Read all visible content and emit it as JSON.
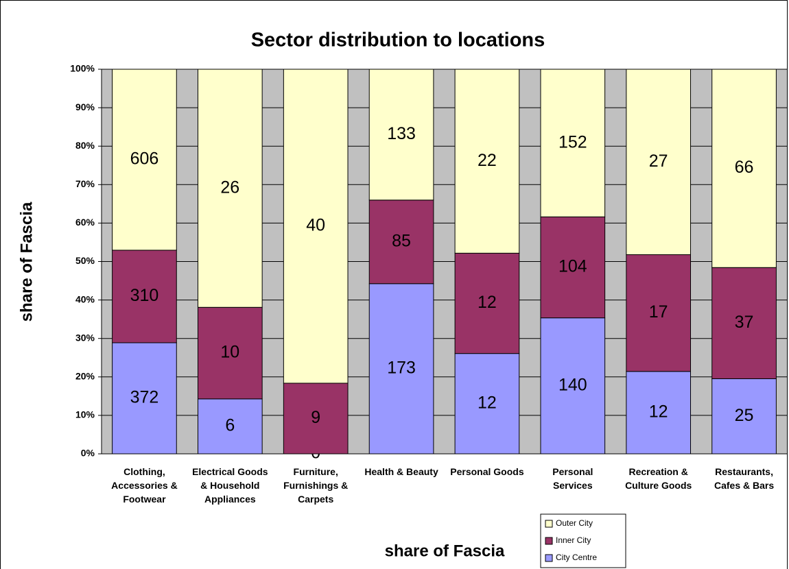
{
  "chart_data": {
    "type": "bar",
    "stacking": "percent",
    "title": "Sector distribution to locations",
    "y_label": "share of Fascia",
    "x_label": "share of Fascia",
    "categories": [
      "Clothing, Accessories & Footwear",
      "Electrical Goods & Household Appliances",
      "Furniture, Furnishings & Carpets",
      "Health & Beauty",
      "Personal Goods",
      "Personal Services",
      "Recreation & Culture Goods",
      "Restaurants, Cafes & Bars"
    ],
    "series": [
      {
        "name": "City Centre",
        "color": "#9999ff",
        "values": [
          372,
          6,
          0,
          173,
          12,
          140,
          12,
          25
        ]
      },
      {
        "name": "Inner City",
        "color": "#993366",
        "values": [
          310,
          10,
          9,
          85,
          12,
          104,
          17,
          37
        ]
      },
      {
        "name": "Outer City",
        "color": "#ffffcc",
        "values": [
          606,
          26,
          40,
          133,
          22,
          152,
          27,
          66
        ]
      }
    ],
    "ylim": [
      0,
      100
    ],
    "yticks": [
      {
        "value": 0,
        "label": "0%"
      },
      {
        "value": 10,
        "label": "10%"
      },
      {
        "value": 20,
        "label": "20%"
      },
      {
        "value": 30,
        "label": "30%"
      },
      {
        "value": 40,
        "label": "40%"
      },
      {
        "value": 50,
        "label": "50%"
      },
      {
        "value": 60,
        "label": "60%"
      },
      {
        "value": 70,
        "label": "70%"
      },
      {
        "value": 80,
        "label": "80%"
      },
      {
        "value": 90,
        "label": "90%"
      },
      {
        "value": 100,
        "label": "100%"
      }
    ],
    "grid": true,
    "plot_background": "#c0c0c0",
    "legend": "bottom"
  }
}
